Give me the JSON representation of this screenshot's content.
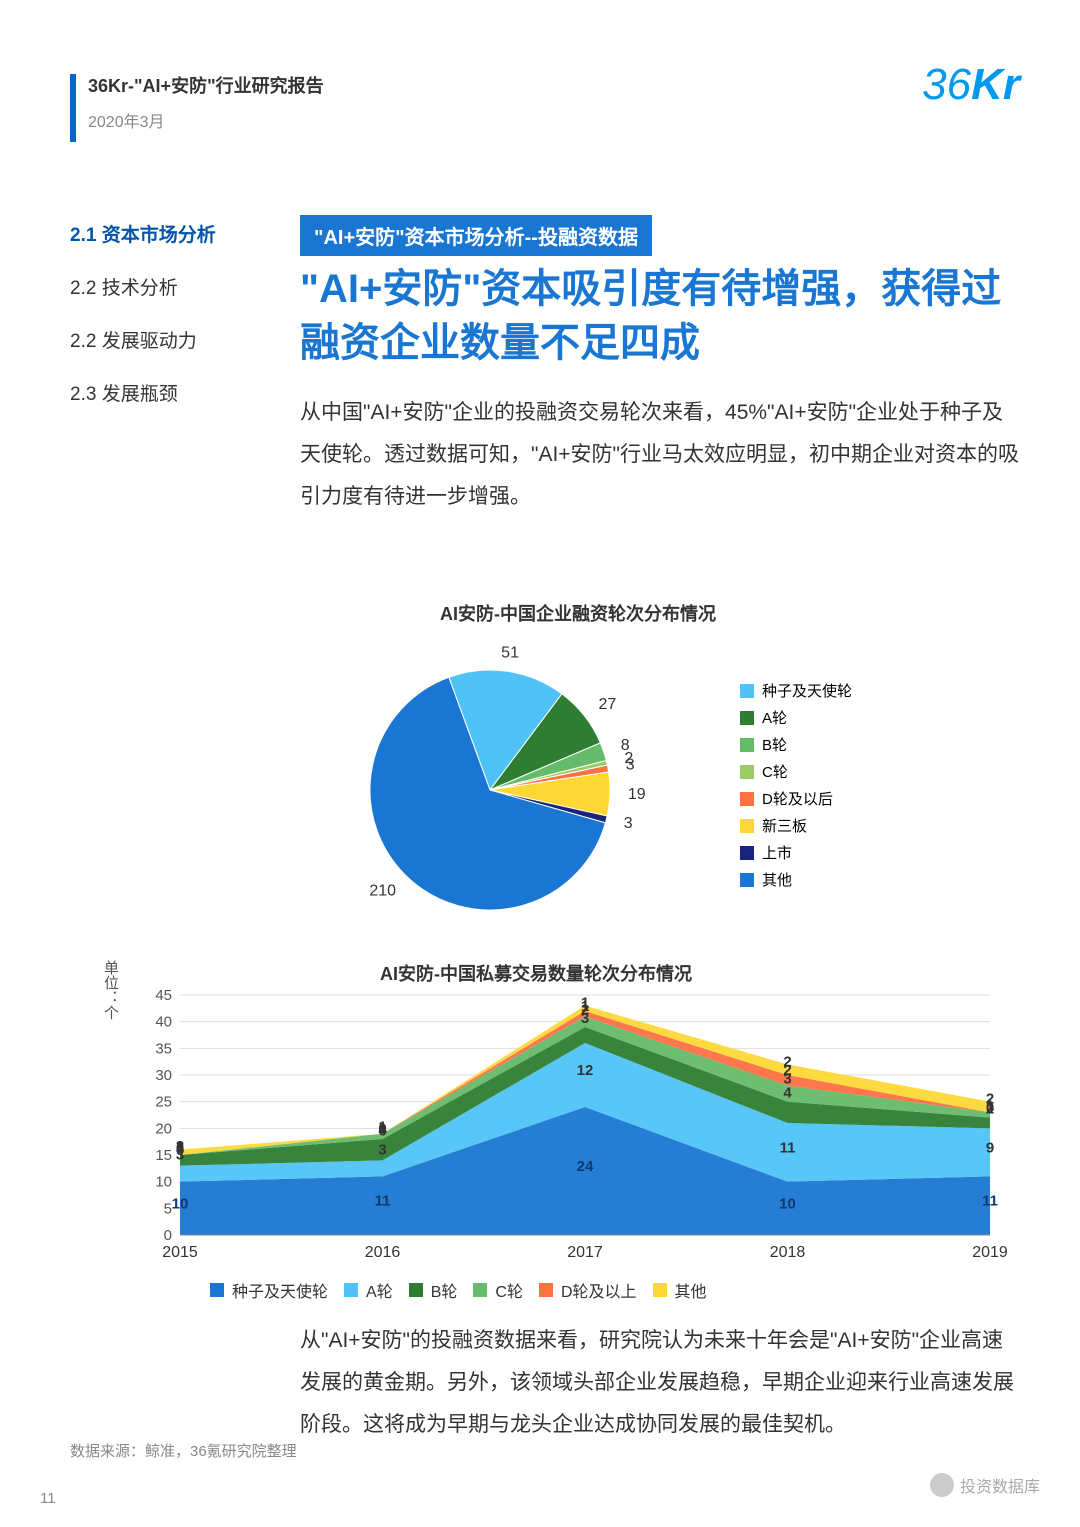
{
  "header": {
    "title": "36Kr-\"AI+安防\"行业研究报告",
    "date": "2020年3月",
    "logo": "36Kr"
  },
  "toc": [
    {
      "num": "2.1",
      "label": "资本市场分析",
      "active": true
    },
    {
      "num": "2.2",
      "label": "技术分析",
      "active": false
    },
    {
      "num": "2.2",
      "label": "发展驱动力",
      "active": false
    },
    {
      "num": "2.3",
      "label": "发展瓶颈",
      "active": false
    }
  ],
  "banner": "\"AI+安防\"资本市场分析--投融资数据",
  "headline": "\"AI+安防\"资本吸引度有待增强，获得过融资企业数量不足四成",
  "para1": "从中国\"AI+安防\"企业的投融资交易轮次来看，45%\"AI+安防\"企业处于种子及天使轮。透过数据可知，\"AI+安防\"行业马太效应明显，初中期企业对资本的吸引力度有待进一步增强。",
  "pie_chart": {
    "type": "pie",
    "title": "AI安防-中国企业融资轮次分布情况",
    "slices": [
      {
        "label": "种子及天使轮",
        "value": 51,
        "color": "#4fc3f7"
      },
      {
        "label": "A轮",
        "value": 27,
        "color": "#2e7d32"
      },
      {
        "label": "B轮",
        "value": 8,
        "color": "#66bb6a"
      },
      {
        "label": "C轮",
        "value": 2,
        "color": "#9ccc65"
      },
      {
        "label": "D轮及以后",
        "value": 3,
        "color": "#ff7043"
      },
      {
        "label": "新三板",
        "value": 19,
        "color": "#fdd835"
      },
      {
        "label": "上市",
        "value": 3,
        "color": "#1a237e"
      },
      {
        "label": "其他",
        "value": 210,
        "color": "#1976d2"
      }
    ],
    "title_fontsize": 18,
    "legend_fontsize": 15
  },
  "area_chart": {
    "type": "area",
    "title": "AI安防-中国私募交易数量轮次分布情况",
    "y_unit": "单位：个",
    "categories": [
      "2015",
      "2016",
      "2017",
      "2018",
      "2019"
    ],
    "ylim": [
      0,
      45
    ],
    "ytick_step": 5,
    "series": [
      {
        "name": "种子及天使轮",
        "color": "#1976d2",
        "values": [
          10,
          11,
          24,
          10,
          11
        ]
      },
      {
        "name": "A轮",
        "color": "#4fc3f7",
        "values": [
          3,
          3,
          12,
          11,
          9
        ]
      },
      {
        "name": "B轮",
        "color": "#2e7d32",
        "values": [
          2,
          4,
          3,
          4,
          2
        ]
      },
      {
        "name": "C轮",
        "color": "#66bb6a",
        "values": [
          0,
          1,
          2,
          3,
          1
        ]
      },
      {
        "name": "D轮及以上",
        "color": "#ff7043",
        "values": [
          0,
          0,
          1,
          2,
          0
        ]
      },
      {
        "name": "其他",
        "color": "#fdd835",
        "values": [
          1,
          0,
          1,
          2,
          2
        ]
      }
    ],
    "grid_color": "#dddddd",
    "label_fontsize": 15,
    "legend_fontsize": 16
  },
  "para2": "从\"AI+安防\"的投融资数据来看，研究院认为未来十年会是\"AI+安防\"企业高速发展的黄金期。另外，该领域头部企业发展趋稳，早期企业迎来行业高速发展阶段。这将成为早期与龙头企业达成协同发展的最佳契机。",
  "source": "数据来源：鲸准，36氪研究院整理",
  "page_number": "11",
  "watermark": "投资数据库"
}
